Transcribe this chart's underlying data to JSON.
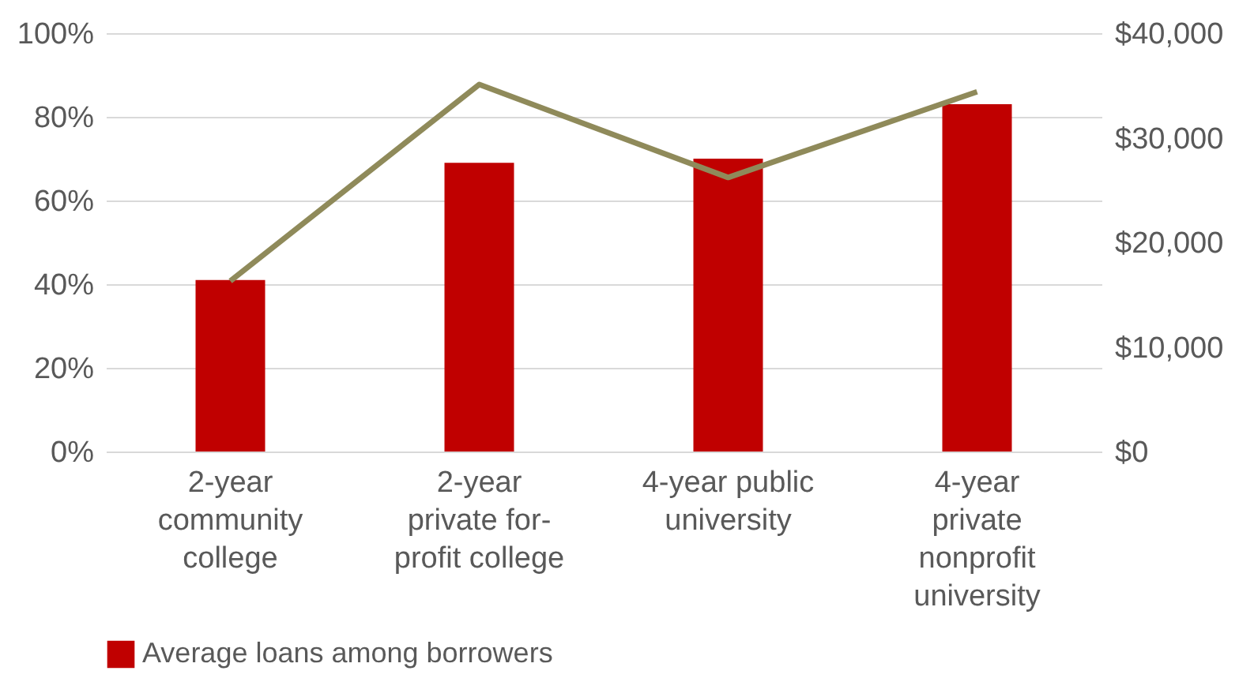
{
  "chart_data": {
    "type": "bar",
    "categories": [
      "2-year\ncommunity\ncollege",
      "2-year\nprivate for-\nprofit college",
      "4-year public\nuniversity",
      "4-year\nprivate\nnonprofit\nuniversity"
    ],
    "series": [
      {
        "name": "Average loans among borrowers",
        "color": "#c00000",
        "values": [
          41,
          69,
          70,
          83
        ]
      },
      {
        "type": "line",
        "axis": "y2",
        "color": "#8f8a5a",
        "values": [
          16300,
          35100,
          26200,
          34400
        ]
      }
    ],
    "ylim": [
      0,
      100
    ],
    "yticks": [
      {
        "value": 0,
        "label": "0%"
      },
      {
        "value": 20,
        "label": "20%"
      },
      {
        "value": 40,
        "label": "40%"
      },
      {
        "value": 60,
        "label": "60%"
      },
      {
        "value": 80,
        "label": "80%"
      },
      {
        "value": 100,
        "label": "100%"
      }
    ],
    "y2lim": [
      0,
      40000
    ],
    "y2ticks": [
      {
        "value": 0,
        "label": "$0"
      },
      {
        "value": 10000,
        "label": "$10,000"
      },
      {
        "value": 20000,
        "label": "$20,000"
      },
      {
        "value": 30000,
        "label": "$30,000"
      },
      {
        "value": 40000,
        "label": "$40,000"
      }
    ],
    "grid": "y",
    "legend": "bottom",
    "marker": "none",
    "line_style": "solid"
  }
}
